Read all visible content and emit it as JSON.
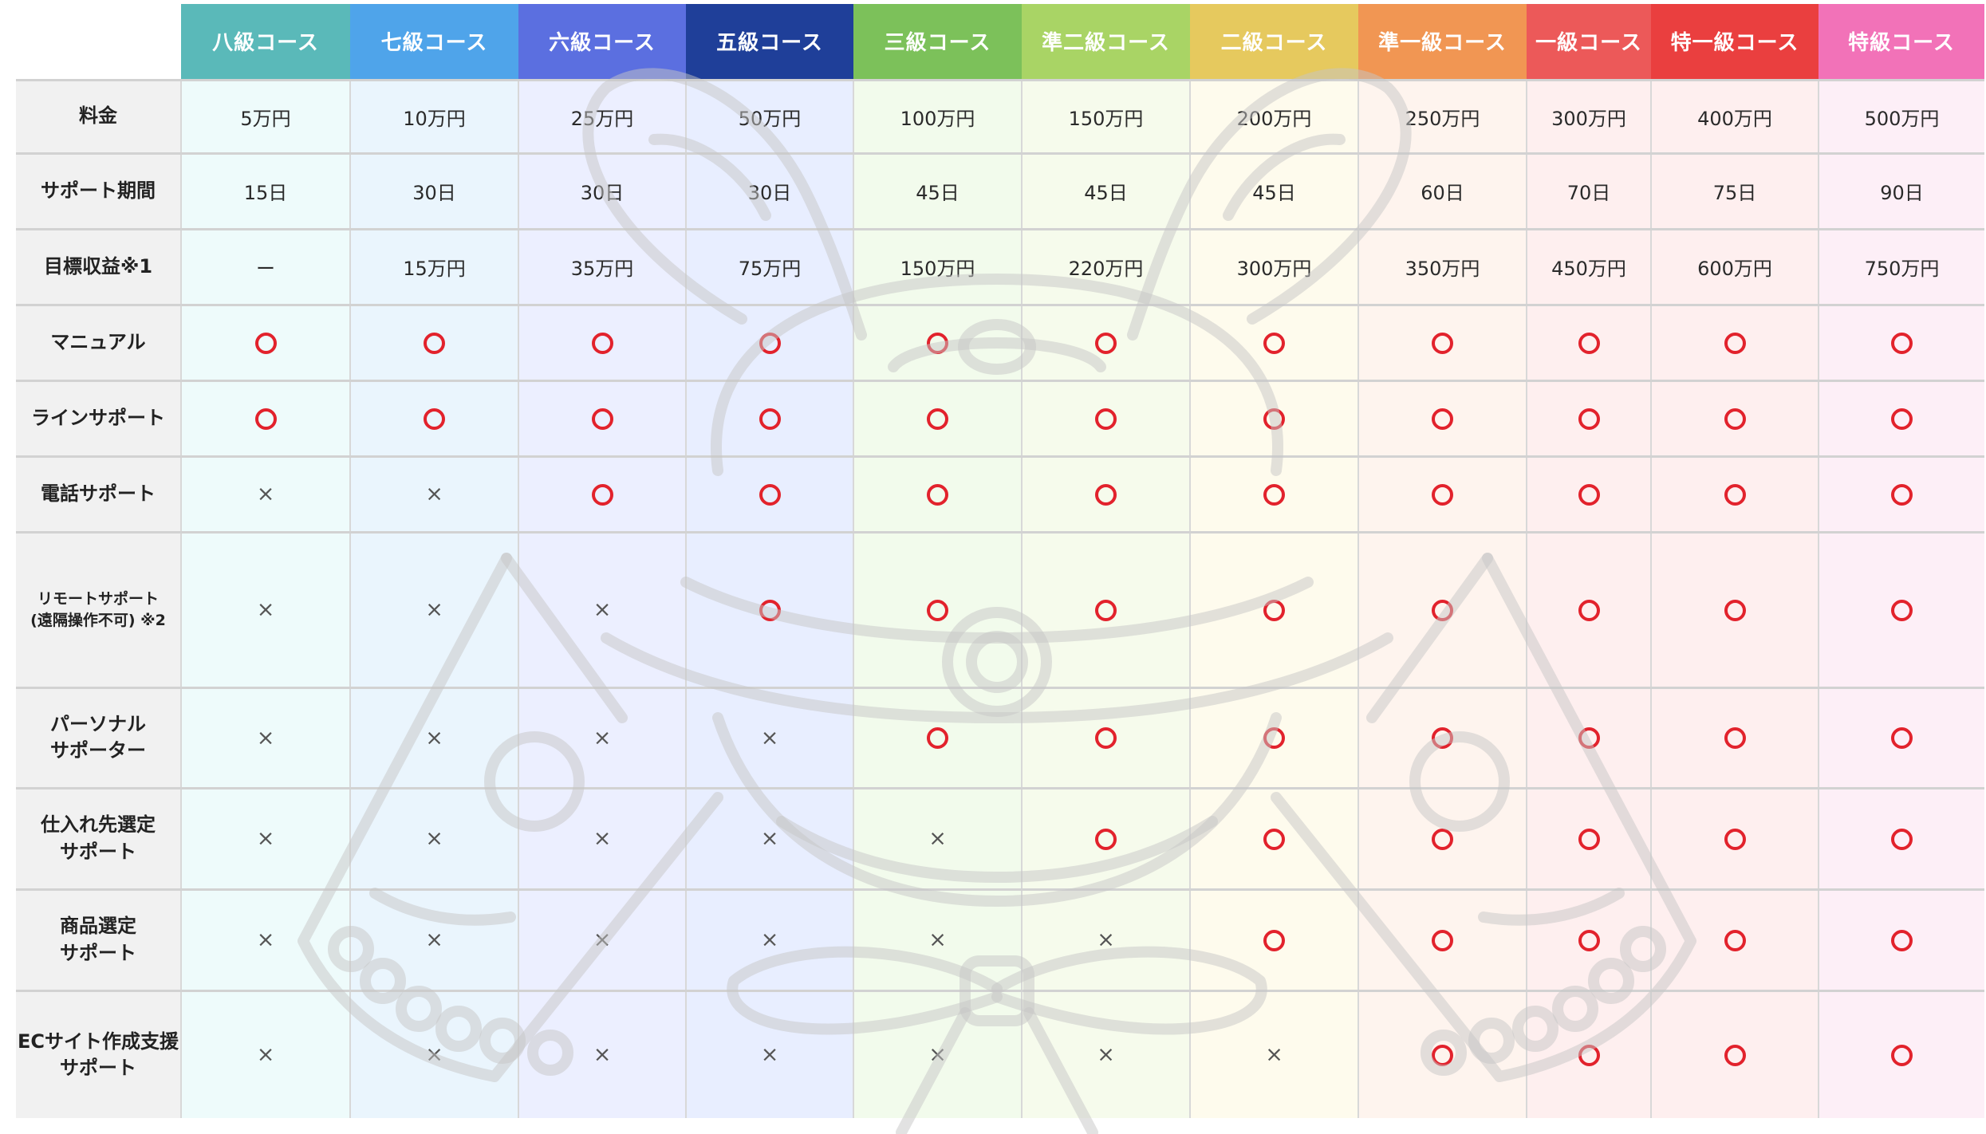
{
  "courses": [
    {
      "name": "八級コース",
      "color": "#5ab9b9",
      "tint": "#eefbfb"
    },
    {
      "name": "七級コース",
      "color": "#4fa4ea",
      "tint": "#eaf5fd"
    },
    {
      "name": "六級コース",
      "color": "#5b6fe0",
      "tint": "#ecefff"
    },
    {
      "name": "五級コース",
      "color": "#1f3f99",
      "tint": "#e8eeff"
    },
    {
      "name": "三級コース",
      "color": "#7cc15a",
      "tint": "#f2fbec"
    },
    {
      "name": "準二級コース",
      "color": "#a9d465",
      "tint": "#f6fbec"
    },
    {
      "name": "二級コース",
      "color": "#e6c95e",
      "tint": "#fefbed"
    },
    {
      "name": "準一級コース",
      "color": "#f19653",
      "tint": "#fef4ee"
    },
    {
      "name": "一級コース",
      "color": "#ec5959",
      "tint": "#feefef"
    },
    {
      "name": "特一級コース",
      "color": "#ea3f3f",
      "tint": "#feefef"
    },
    {
      "name": "特級コース",
      "color": "#f272b8",
      "tint": "#fdeff7"
    }
  ],
  "rows": [
    {
      "label": [
        "料金"
      ],
      "values": [
        "5万円",
        "10万円",
        "25万円",
        "50万円",
        "100万円",
        "150万円",
        "200万円",
        "250万円",
        "300万円",
        "400万円",
        "500万円"
      ]
    },
    {
      "label": [
        "サポート期間"
      ],
      "values": [
        "15日",
        "30日",
        "30日",
        "30日",
        "45日",
        "45日",
        "45日",
        "60日",
        "70日",
        "75日",
        "90日"
      ]
    },
    {
      "label": [
        "目標収益※1"
      ],
      "values": [
        "ー",
        "15万円",
        "35万円",
        "75万円",
        "150万円",
        "220万円",
        "300万円",
        "350万円",
        "450万円",
        "600万円",
        "750万円"
      ]
    },
    {
      "label": [
        "マニュアル"
      ],
      "values": [
        "o",
        "o",
        "o",
        "o",
        "o",
        "o",
        "o",
        "o",
        "o",
        "o",
        "o"
      ]
    },
    {
      "label": [
        "ラインサポート"
      ],
      "values": [
        "o",
        "o",
        "o",
        "o",
        "o",
        "o",
        "o",
        "o",
        "o",
        "o",
        "o"
      ]
    },
    {
      "label": [
        "電話サポート"
      ],
      "values": [
        "x",
        "x",
        "o",
        "o",
        "o",
        "o",
        "o",
        "o",
        "o",
        "o",
        "o"
      ]
    },
    {
      "label": [
        "リモートサポート",
        "(遠隔操作不可) ※2"
      ],
      "small": true,
      "values": [
        "x",
        "x",
        "x",
        "o",
        "o",
        "o",
        "o",
        "o",
        "o",
        "o",
        "o"
      ]
    },
    {
      "label": [
        "パーソナル",
        "サポーター"
      ],
      "values": [
        "x",
        "x",
        "x",
        "x",
        "o",
        "o",
        "o",
        "o",
        "o",
        "o",
        "o"
      ]
    },
    {
      "label": [
        "仕入れ先選定",
        "サポート"
      ],
      "values": [
        "x",
        "x",
        "x",
        "x",
        "x",
        "o",
        "o",
        "o",
        "o",
        "o",
        "o"
      ]
    },
    {
      "label": [
        "商品選定",
        "サポート"
      ],
      "values": [
        "x",
        "x",
        "x",
        "x",
        "x",
        "x",
        "o",
        "o",
        "o",
        "o",
        "o"
      ]
    },
    {
      "label": [
        "ECサイト作成支援",
        "サポート"
      ],
      "values": [
        "x",
        "x",
        "x",
        "x",
        "x",
        "x",
        "x",
        "o",
        "o",
        "o",
        "o"
      ]
    }
  ],
  "symbols": {
    "o": "circle-mark",
    "x": "×"
  },
  "watermark": {
    "icon": "samurai-helmet-icon",
    "stroke": "#c8c8c8"
  }
}
